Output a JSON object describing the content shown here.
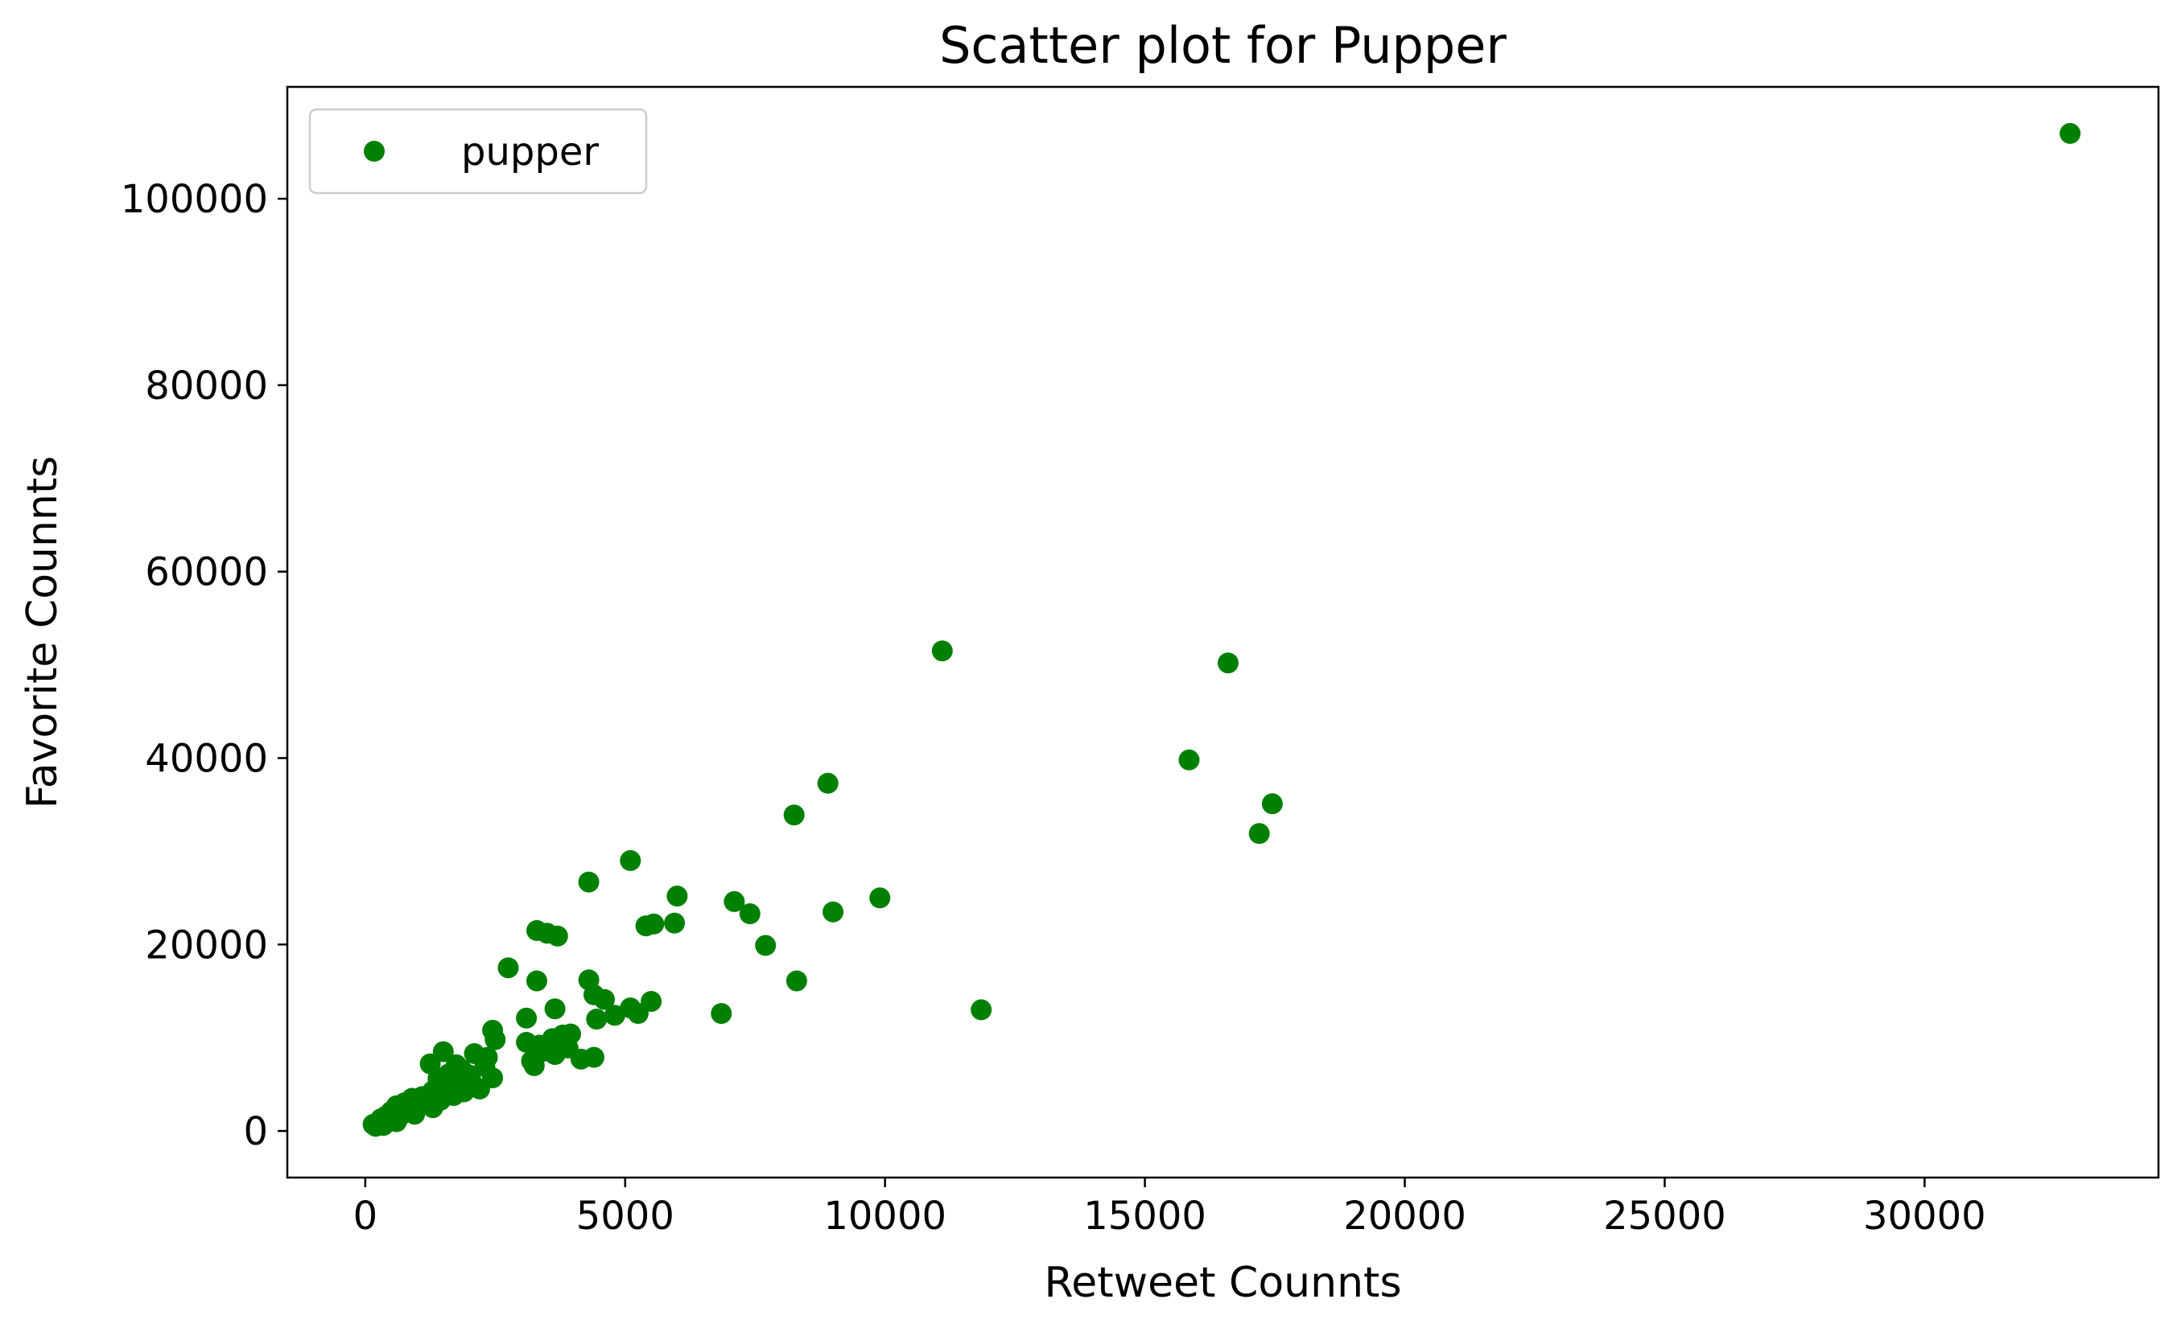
{
  "chart_data": {
    "type": "scatter",
    "title": "Scatter plot for Pupper",
    "xlabel": "Retweet Counnts",
    "ylabel": "Favorite Counnts",
    "xlim": [
      -1500,
      34500
    ],
    "ylim": [
      -5000,
      112000
    ],
    "xticks": [
      0,
      5000,
      10000,
      15000,
      20000,
      25000,
      30000
    ],
    "xtick_labels": [
      "0",
      "5000",
      "10000",
      "15000",
      "20000",
      "25000",
      "30000"
    ],
    "yticks": [
      0,
      20000,
      40000,
      60000,
      80000,
      100000
    ],
    "ytick_labels": [
      "0",
      "20000",
      "40000",
      "60000",
      "80000",
      "100000"
    ],
    "grid": false,
    "legend": {
      "position": "top-left",
      "entries": [
        "pupper"
      ]
    },
    "colors": {
      "series": "#008000"
    },
    "series": [
      {
        "name": "pupper",
        "color": "#008000",
        "points": [
          [
            32800,
            107000
          ],
          [
            11100,
            51500
          ],
          [
            16600,
            50200
          ],
          [
            15850,
            39800
          ],
          [
            17450,
            35100
          ],
          [
            17200,
            31900
          ],
          [
            8900,
            37300
          ],
          [
            8250,
            33900
          ],
          [
            5100,
            29000
          ],
          [
            4300,
            26700
          ],
          [
            6000,
            25200
          ],
          [
            9900,
            25000
          ],
          [
            7100,
            24600
          ],
          [
            7400,
            23300
          ],
          [
            9000,
            23500
          ],
          [
            5950,
            22300
          ],
          [
            5400,
            22000
          ],
          [
            5550,
            22200
          ],
          [
            3300,
            21500
          ],
          [
            3500,
            21200
          ],
          [
            3700,
            20900
          ],
          [
            7700,
            19900
          ],
          [
            2750,
            17500
          ],
          [
            3300,
            16100
          ],
          [
            4300,
            16200
          ],
          [
            8300,
            16100
          ],
          [
            4400,
            14600
          ],
          [
            4600,
            14100
          ],
          [
            5500,
            13900
          ],
          [
            5100,
            13200
          ],
          [
            5250,
            12600
          ],
          [
            4800,
            12400
          ],
          [
            4450,
            12000
          ],
          [
            3650,
            13100
          ],
          [
            3100,
            12100
          ],
          [
            6850,
            12600
          ],
          [
            11850,
            13000
          ],
          [
            2450,
            10800
          ],
          [
            2500,
            9800
          ],
          [
            3100,
            9500
          ],
          [
            3350,
            9200
          ],
          [
            3600,
            9900
          ],
          [
            3800,
            10300
          ],
          [
            3950,
            10400
          ],
          [
            3400,
            8500
          ],
          [
            3650,
            8200
          ],
          [
            3200,
            7500
          ],
          [
            3250,
            7000
          ],
          [
            4150,
            7700
          ],
          [
            4400,
            7900
          ],
          [
            3900,
            8900
          ],
          [
            2100,
            8300
          ],
          [
            1500,
            8500
          ],
          [
            1250,
            7200
          ],
          [
            1750,
            7100
          ],
          [
            2300,
            6900
          ],
          [
            2000,
            6000
          ],
          [
            1600,
            6100
          ],
          [
            2450,
            5700
          ],
          [
            1800,
            5500
          ],
          [
            2200,
            4500
          ],
          [
            1550,
            4800
          ],
          [
            1300,
            4300
          ],
          [
            1900,
            4200
          ],
          [
            1700,
            3800
          ],
          [
            1100,
            3700
          ],
          [
            1450,
            3300
          ],
          [
            900,
            3500
          ],
          [
            1200,
            2900
          ],
          [
            750,
            3000
          ],
          [
            1000,
            2500
          ],
          [
            600,
            2700
          ],
          [
            850,
            2200
          ],
          [
            500,
            2100
          ],
          [
            700,
            1900
          ],
          [
            400,
            1600
          ],
          [
            550,
            1400
          ],
          [
            300,
            1300
          ],
          [
            450,
            1100
          ],
          [
            250,
            900
          ],
          [
            150,
            700
          ],
          [
            200,
            500
          ],
          [
            350,
            600
          ],
          [
            650,
            1500
          ],
          [
            950,
            1800
          ],
          [
            1300,
            2500
          ],
          [
            1650,
            4000
          ],
          [
            2050,
            5200
          ],
          [
            1400,
            5600
          ],
          [
            1850,
            6600
          ],
          [
            2350,
            7900
          ],
          [
            600,
            1000
          ]
        ]
      }
    ]
  }
}
